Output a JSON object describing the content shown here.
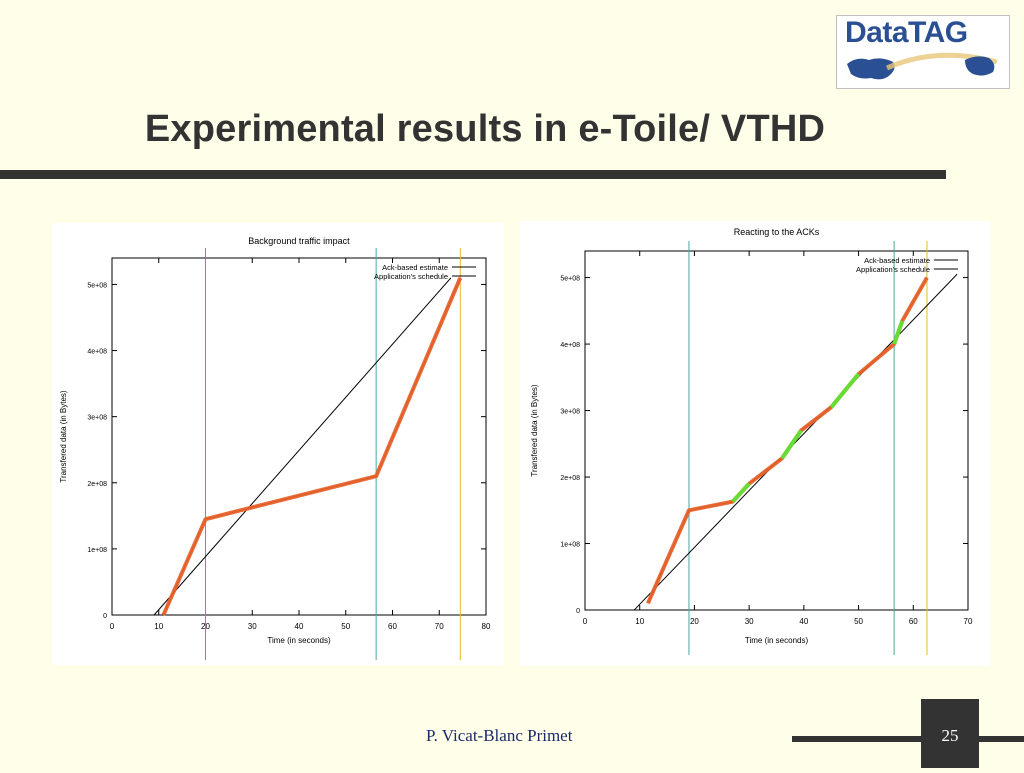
{
  "slide": {
    "title": "Experimental results in e-Toile/ VTHD",
    "author": "P. Vicat-Blanc Primet",
    "page_number": "25",
    "logo_text": "DataTAG",
    "accent_color": "#e8622a",
    "highlight_green": "#66dd33"
  },
  "chart_data": [
    {
      "type": "line",
      "title": "Background traffic impact",
      "xlabel": "Time (in seconds)",
      "ylabel": "Transfered data (in Bytes)",
      "xlim": [
        0,
        80
      ],
      "ylim": [
        0,
        540000000
      ],
      "xticks": [
        0,
        10,
        20,
        30,
        40,
        50,
        60,
        70,
        80
      ],
      "yticks": [
        0,
        100000000,
        200000000,
        300000000,
        400000000,
        500000000
      ],
      "ytick_labels": [
        "0",
        "1e+08",
        "2e+08",
        "3e+08",
        "4e+08",
        "5e+08"
      ],
      "legend": [
        "Ack-based estimate",
        "Application's schedule"
      ],
      "legend_position": "top-right",
      "vlines": [
        {
          "x": 20,
          "color": "#4aa89a"
        },
        {
          "x": 56.5,
          "color": "#4aa89a"
        },
        {
          "x": 74.5,
          "color": "#e8b82a"
        }
      ],
      "series": [
        {
          "name": "Ack-based estimate",
          "color": "#e8622a",
          "x": [
            11,
            20,
            56.5,
            74.5
          ],
          "y": [
            0,
            145000000,
            210000000,
            510000000
          ]
        },
        {
          "name": "Application's schedule",
          "color": "#000000",
          "x": [
            9,
            72.5
          ],
          "y": [
            0,
            510000000
          ]
        }
      ]
    },
    {
      "type": "line",
      "title": "Reacting to the ACKs",
      "xlabel": "Time (in seconds)",
      "ylabel": "Transfered data (in Bytes)",
      "xlim": [
        0,
        70
      ],
      "ylim": [
        0,
        540000000
      ],
      "xticks": [
        0,
        10,
        20,
        30,
        40,
        50,
        60,
        70
      ],
      "yticks": [
        0,
        100000000,
        200000000,
        300000000,
        400000000,
        500000000
      ],
      "ytick_labels": [
        "0",
        "1e+08",
        "2e+08",
        "3e+08",
        "4e+08",
        "5e+08"
      ],
      "legend": [
        "Ack-based estimate",
        "Application's schedule"
      ],
      "legend_position": "top-right",
      "vlines": [
        {
          "x": 19,
          "color": "#4aa89a"
        },
        {
          "x": 56.5,
          "color": "#4aa89a"
        },
        {
          "x": 62.5,
          "color": "#e8b82a"
        }
      ],
      "series": [
        {
          "name": "Ack-based estimate",
          "color": "#e8622a",
          "x": [
            11.5,
            19,
            27,
            30,
            36,
            39.5,
            45,
            50,
            56.5,
            58,
            62.5
          ],
          "y": [
            10000000,
            150000000,
            163000000,
            190000000,
            228000000,
            270000000,
            305000000,
            355000000,
            400000000,
            435000000,
            500000000
          ],
          "green_segments": [
            [
              27,
              30
            ],
            [
              36,
              39.5
            ],
            [
              45,
              50
            ],
            [
              56.5,
              58
            ]
          ]
        },
        {
          "name": "Application's schedule",
          "color": "#000000",
          "x": [
            9,
            68
          ],
          "y": [
            0,
            505000000
          ]
        }
      ]
    }
  ]
}
